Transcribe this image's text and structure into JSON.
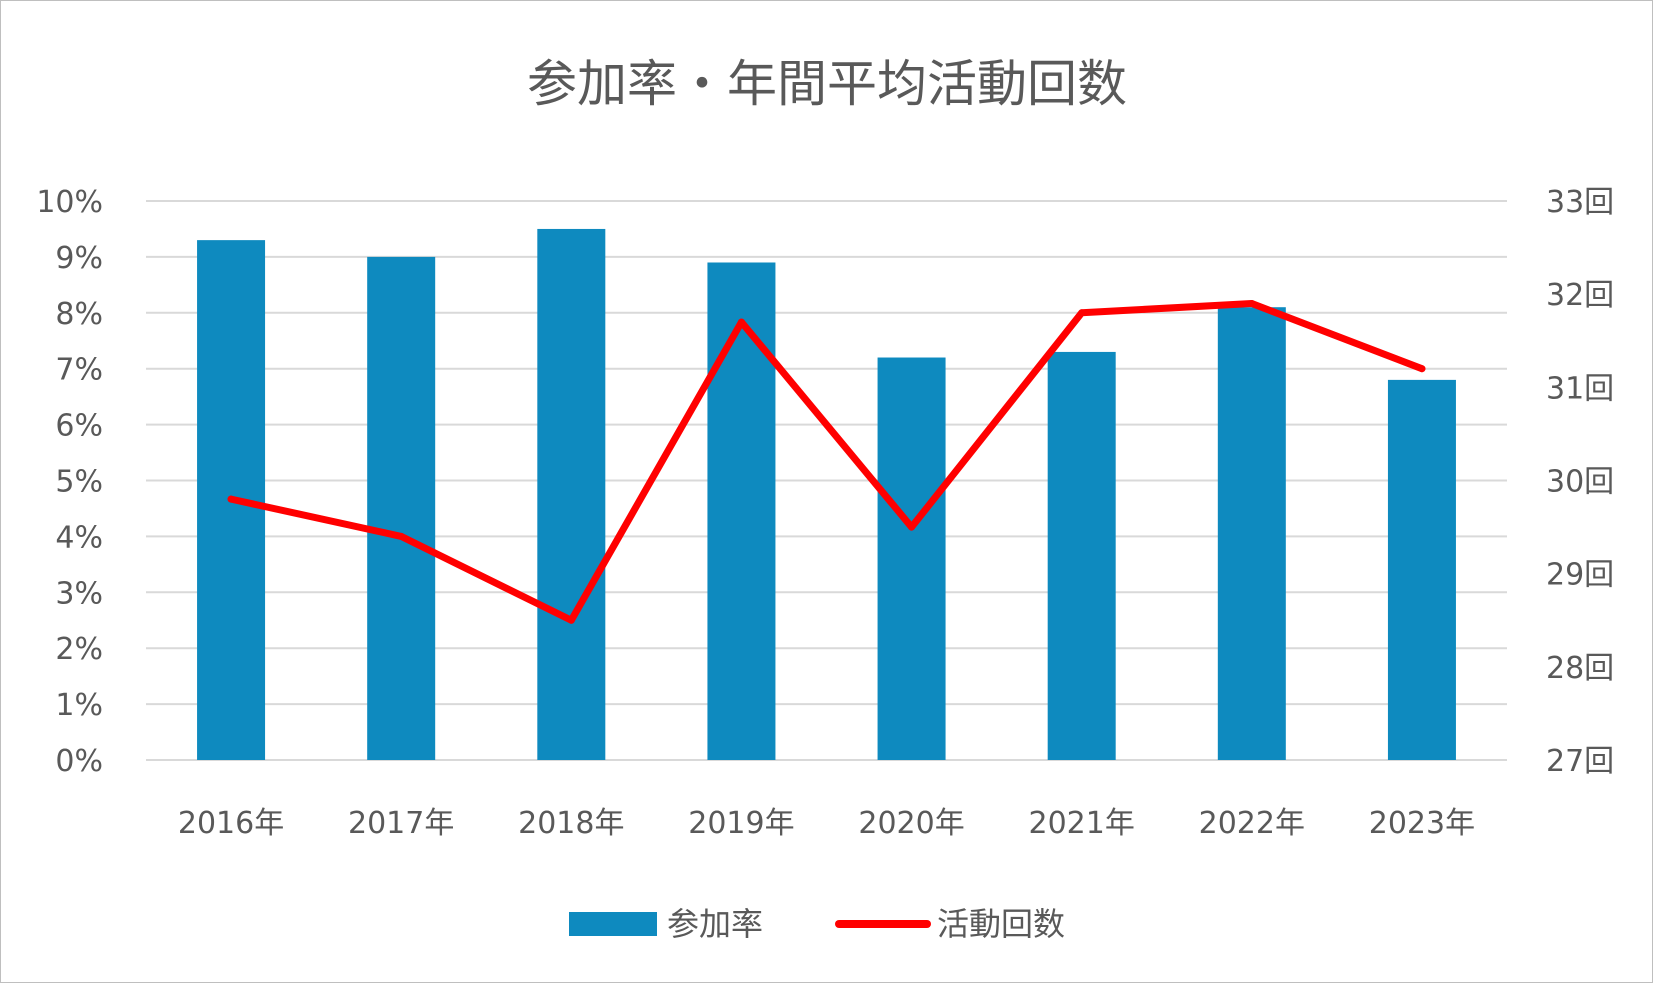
{
  "chart_data": {
    "type": "bar",
    "title": "参加率・年間平均活動回数",
    "categories": [
      "2016年",
      "2017年",
      "2018年",
      "2019年",
      "2020年",
      "2021年",
      "2022年",
      "2023年"
    ],
    "series": [
      {
        "name": "参加率",
        "type": "bar",
        "axis": "left",
        "color": "#0e8abf",
        "values": [
          9.3,
          9.0,
          9.5,
          8.9,
          7.2,
          7.3,
          8.1,
          6.8
        ]
      },
      {
        "name": "活動回数",
        "type": "line",
        "axis": "right",
        "color": "#ff0000",
        "values": [
          29.8,
          29.4,
          28.5,
          31.7,
          29.5,
          31.8,
          31.9,
          31.2
        ]
      }
    ],
    "y_left": {
      "ylim": [
        0,
        10
      ],
      "ticks": [
        "0%",
        "1%",
        "2%",
        "3%",
        "4%",
        "5%",
        "6%",
        "7%",
        "8%",
        "9%",
        "10%"
      ]
    },
    "y_right": {
      "ylim": [
        27,
        33
      ],
      "ticks": [
        "27回",
        "28回",
        "29回",
        "30回",
        "31回",
        "32回",
        "33回"
      ]
    },
    "grid": true,
    "legend_position": "bottom"
  }
}
